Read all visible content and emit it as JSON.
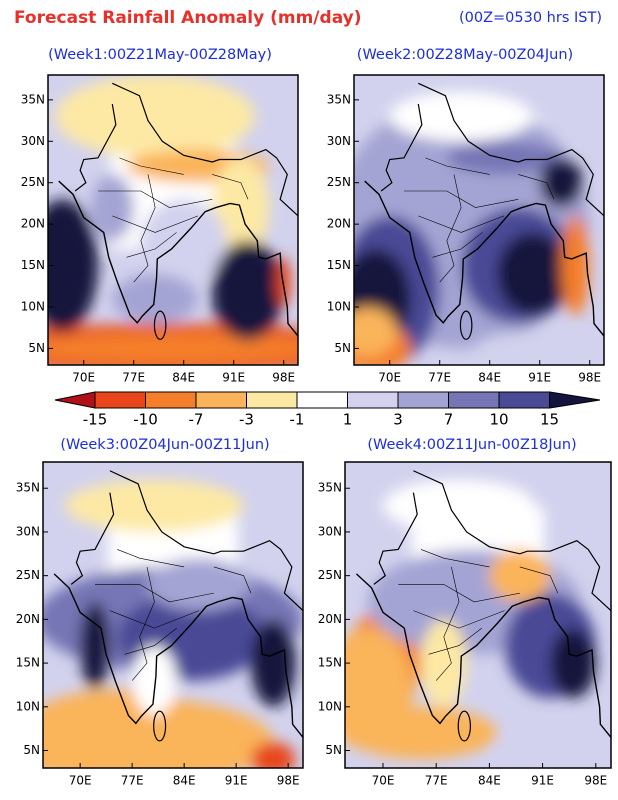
{
  "header": {
    "title": "Forecast Rainfall Anomaly (mm/day)",
    "note": "(00Z=0530 hrs IST)"
  },
  "panels": [
    {
      "title": "(Week1:00Z21May-00Z28May)"
    },
    {
      "title": "(Week2:00Z28May-00Z04Jun)"
    },
    {
      "title": "(Week3:00Z04Jun-00Z11Jun)"
    },
    {
      "title": "(Week4:00Z11Jun-00Z18Jun)"
    }
  ],
  "lat_labels": [
    "35N",
    "30N",
    "25N",
    "20N",
    "15N",
    "10N",
    "5N"
  ],
  "lon_labels": [
    "70E",
    "77E",
    "84E",
    "91E",
    "98E"
  ],
  "colorbar": {
    "ticks": [
      -15,
      -10,
      -7,
      -3,
      -1,
      1,
      3,
      7,
      10,
      15
    ]
  }
}
